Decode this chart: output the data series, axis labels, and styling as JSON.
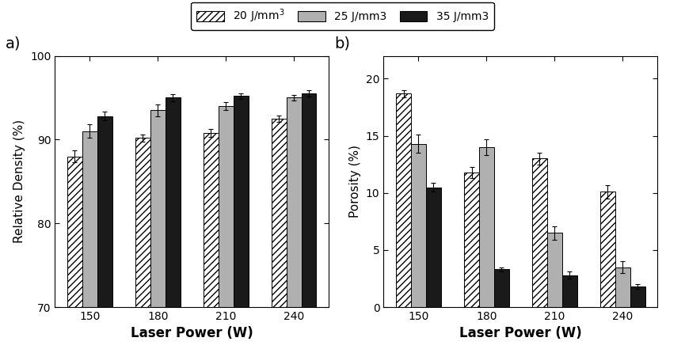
{
  "laser_powers": [
    150,
    180,
    210,
    240
  ],
  "rel_density": {
    "20": [
      88.0,
      90.2,
      90.8,
      92.5
    ],
    "25": [
      91.0,
      93.5,
      94.0,
      95.0
    ],
    "35": [
      92.8,
      95.0,
      95.2,
      95.5
    ]
  },
  "rel_density_err": {
    "20": [
      0.7,
      0.4,
      0.5,
      0.4
    ],
    "25": [
      0.8,
      0.7,
      0.5,
      0.3
    ],
    "35": [
      0.5,
      0.4,
      0.3,
      0.4
    ]
  },
  "porosity": {
    "20": [
      18.7,
      11.8,
      13.0,
      10.1
    ],
    "25": [
      14.3,
      14.0,
      6.5,
      3.5
    ],
    "35": [
      10.5,
      3.3,
      2.8,
      1.8
    ]
  },
  "porosity_err": {
    "20": [
      0.3,
      0.5,
      0.5,
      0.6
    ],
    "25": [
      0.8,
      0.7,
      0.6,
      0.5
    ],
    "35": [
      0.4,
      0.2,
      0.3,
      0.2
    ]
  },
  "bar_width": 0.22,
  "color_20": "#ffffff",
  "color_25": "#b0b0b0",
  "color_35": "#1a1a1a",
  "ylabel_a": "Relative Density (%)",
  "ylabel_b": "Porosity (%)",
  "xlabel": "Laser Power (W)",
  "ylim_a": [
    70,
    100
  ],
  "ylim_b": [
    0,
    22
  ],
  "yticks_a": [
    70,
    80,
    90,
    100
  ],
  "yticks_b": [
    0,
    5,
    10,
    15,
    20
  ],
  "label_a": "a)",
  "label_b": "b)",
  "background_color": "#ffffff",
  "edge_color": "#000000"
}
